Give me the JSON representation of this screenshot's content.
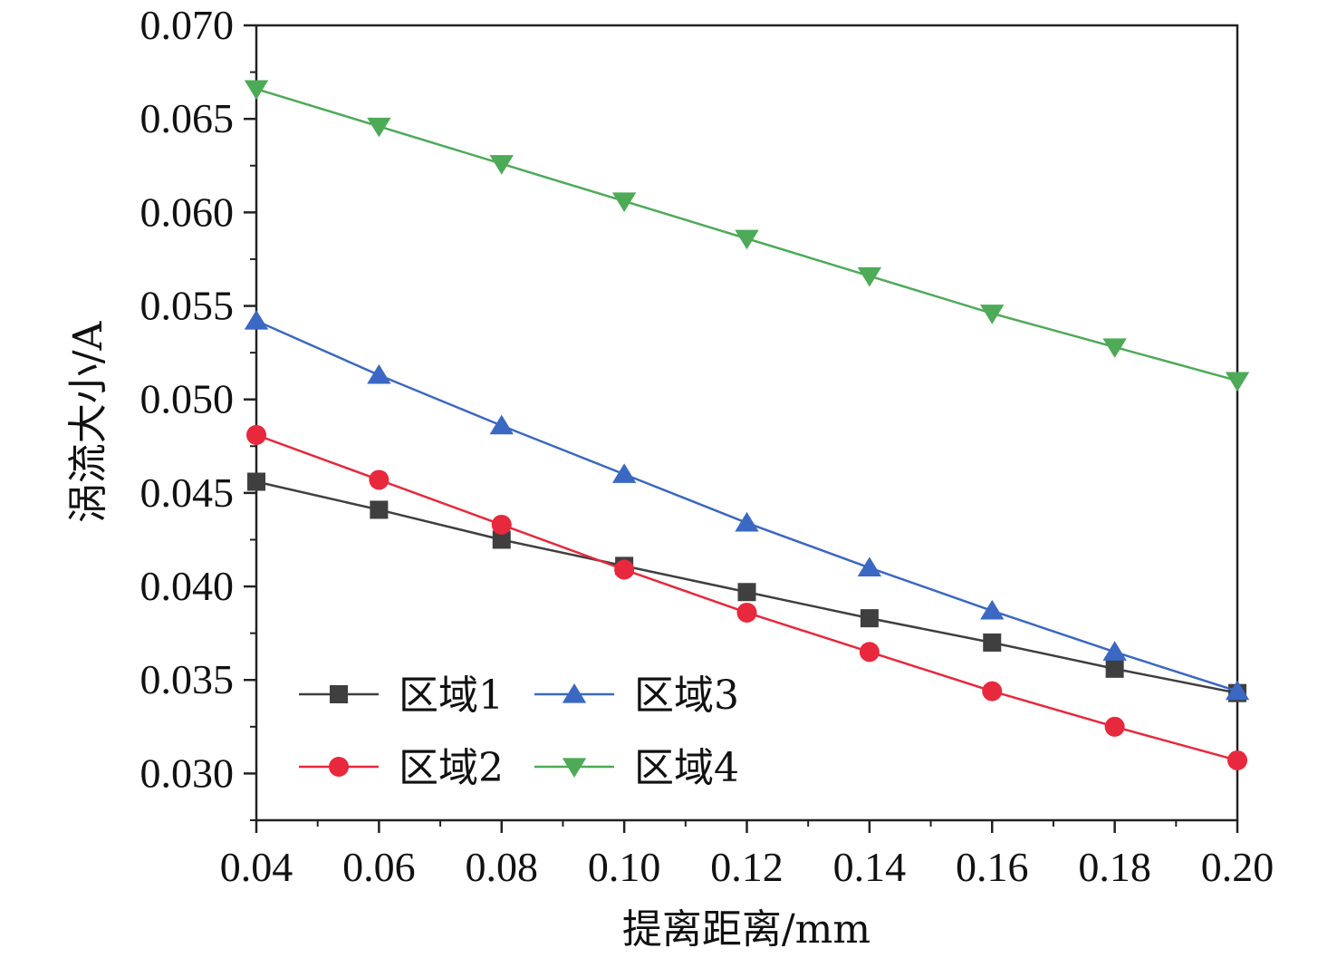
{
  "chart_data": {
    "type": "line",
    "title": "",
    "xlabel": "提离距离/mm",
    "ylabel": "涡流大小/A",
    "x": [
      0.04,
      0.06,
      0.08,
      0.1,
      0.12,
      0.14,
      0.16,
      0.18,
      0.2
    ],
    "xlim": [
      0.04,
      0.2
    ],
    "ylim": [
      0.0275,
      0.07
    ],
    "x_ticks": [
      "0.04",
      "0.06",
      "0.08",
      "0.10",
      "0.12",
      "0.14",
      "0.16",
      "0.18",
      "0.20"
    ],
    "y_ticks": [
      "0.030",
      "0.035",
      "0.040",
      "0.045",
      "0.050",
      "0.055",
      "0.060",
      "0.065",
      "0.070"
    ],
    "grid": false,
    "legend_position": "bottom-left",
    "series": [
      {
        "name": "区域1",
        "color": "#3f3f3f",
        "marker": "square",
        "values": [
          0.0456,
          0.0441,
          0.0425,
          0.0411,
          0.0397,
          0.0383,
          0.037,
          0.0356,
          0.0343
        ]
      },
      {
        "name": "区域2",
        "color": "#e8283c",
        "marker": "circle",
        "values": [
          0.0481,
          0.0457,
          0.0433,
          0.0409,
          0.0386,
          0.0365,
          0.0344,
          0.0325,
          0.0307
        ]
      },
      {
        "name": "区域3",
        "color": "#3a68c2",
        "marker": "triangle-up",
        "values": [
          0.0542,
          0.0513,
          0.0486,
          0.046,
          0.0434,
          0.041,
          0.0387,
          0.0365,
          0.0344
        ]
      },
      {
        "name": "区域4",
        "color": "#4daa57",
        "marker": "triangle-down",
        "values": [
          0.0666,
          0.0646,
          0.0626,
          0.0606,
          0.0586,
          0.0566,
          0.0546,
          0.0528,
          0.051
        ]
      }
    ]
  }
}
